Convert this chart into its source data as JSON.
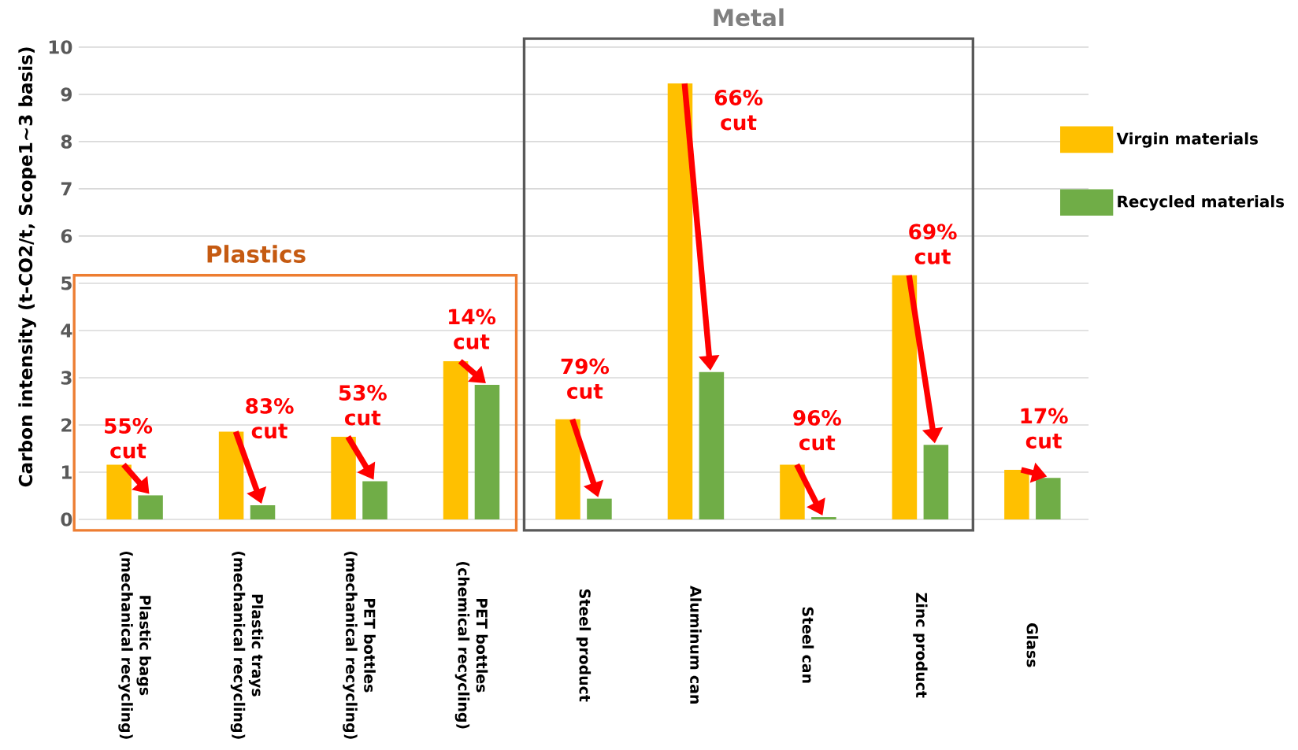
{
  "chart_data": {
    "type": "bar",
    "ylabel": "Carbon intensity  (t-CO2/t, Scope1~3 basis)",
    "categories": [
      "Plastic bags (mechanical recycling)",
      "Plastic trays (mechanical recycling)",
      "PET bottles (mechanical recycling)",
      "PET bottles (chemical recycling)",
      "Steel product",
      "Aluminum can",
      "Steel can",
      "Zinc product",
      "Glass"
    ],
    "series": [
      {
        "name": "Virgin materials",
        "color": "#ffc000",
        "values": [
          1.16,
          1.86,
          1.75,
          3.35,
          2.12,
          9.23,
          1.16,
          5.17,
          1.05
        ]
      },
      {
        "name": "Recycled materials",
        "color": "#70ad47",
        "values": [
          0.51,
          0.3,
          0.81,
          2.85,
          0.44,
          3.12,
          0.05,
          1.58,
          0.88
        ]
      }
    ],
    "ylim": [
      0,
      10
    ],
    "yticks": [
      0,
      1,
      2,
      3,
      4,
      5,
      6,
      7,
      8,
      9,
      10
    ],
    "grid": "y",
    "legend": "right",
    "annotations": [
      "55% cut",
      "83% cut",
      "53% cut",
      "14% cut",
      "79% cut",
      "66% cut",
      "96% cut",
      "69% cut",
      "17% cut",
      "Plastics",
      "Metal"
    ]
  }
}
